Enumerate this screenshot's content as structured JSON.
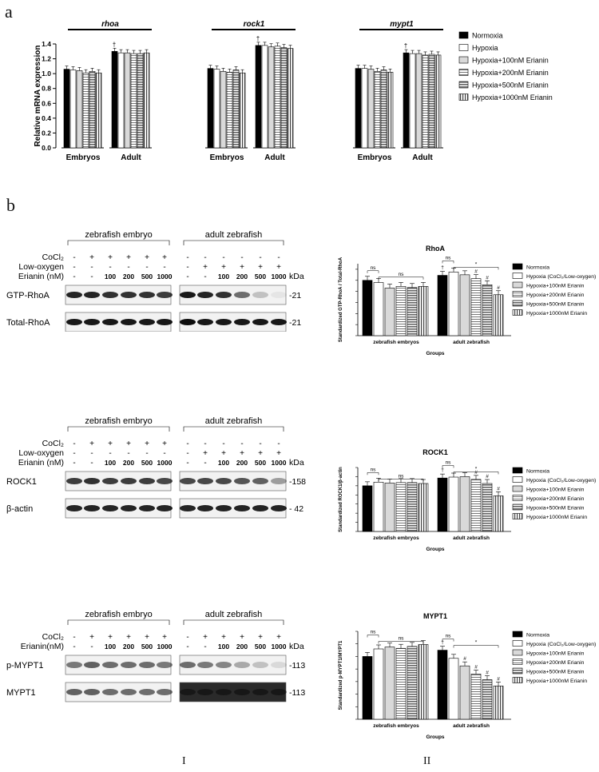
{
  "panel_a_label": "a",
  "panel_b_label": "b",
  "roman_left": "I",
  "roman_right": "II",
  "chart_data": [
    {
      "type": "bar",
      "ylabel": "Relative mRNA expression",
      "ylim": [
        0,
        1.4
      ],
      "yticks": [
        "0.0",
        "0.2",
        "0.4",
        "0.6",
        "0.8",
        "1.0",
        "1.2",
        "1.4"
      ],
      "genes": [
        {
          "title": "rhoa",
          "groups": [
            {
              "label": "Embryos",
              "values": [
                1.06,
                1.05,
                1.04,
                1.01,
                1.03,
                1.01
              ]
            },
            {
              "label": "Adult",
              "values": [
                1.3,
                1.28,
                1.28,
                1.27,
                1.27,
                1.28
              ]
            }
          ],
          "marks": [
            "†"
          ]
        },
        {
          "title": "rock1",
          "groups": [
            {
              "label": "Embryos",
              "values": [
                1.07,
                1.06,
                1.03,
                1.02,
                1.05,
                1.01
              ]
            },
            {
              "label": "Adult",
              "values": [
                1.38,
                1.38,
                1.36,
                1.37,
                1.35,
                1.34
              ]
            }
          ],
          "marks": [
            "†"
          ]
        },
        {
          "title": "mypt1",
          "groups": [
            {
              "label": "Embryos",
              "values": [
                1.07,
                1.07,
                1.06,
                1.03,
                1.05,
                1.02
              ]
            },
            {
              "label": "Adult",
              "values": [
                1.28,
                1.27,
                1.27,
                1.25,
                1.26,
                1.25
              ]
            }
          ],
          "marks": [
            "†"
          ]
        }
      ],
      "legend": [
        "Normoxia",
        "Hypoxia",
        "Hypoxia+100nM Erianin",
        "Hypoxia+200nM Erianin",
        "Hypoxia+500nM Erianin",
        "Hypoxia+1000nM Erianin"
      ]
    },
    {
      "type": "bar",
      "title": "RhoA",
      "ylabel": "Standardized GTP-RhoA / Total-RhoA",
      "xlabel": "Groups",
      "categories": [
        "zebrafish embryos",
        "adult zebrafish"
      ],
      "embryo": [
        1.0,
        0.96,
        0.86,
        0.89,
        0.87,
        0.89
      ],
      "adult": [
        1.09,
        1.15,
        1.1,
        1.03,
        0.92,
        0.74
      ],
      "legend": [
        "Normoxia",
        "Hypoxia (CoCl₂/Low-oxygen)",
        "Hypoxia+100nM Erianin",
        "Hypoxia+200nM Erianin",
        "Hypoxia+500nM Erianin",
        "Hypoxia+1000nM Erianin"
      ],
      "annotations": [
        "ns",
        "ns",
        "†",
        "ns",
        "*",
        "#",
        "#",
        "#"
      ]
    },
    {
      "type": "bar",
      "title": "ROCK1",
      "ylabel": "Standardized ROCK1/β-actin",
      "xlabel": "Groups",
      "categories": [
        "zebrafish embryos",
        "adult zebrafish"
      ],
      "embryo": [
        1.0,
        1.08,
        1.06,
        1.07,
        1.07,
        1.05
      ],
      "adult": [
        1.17,
        1.19,
        1.2,
        1.14,
        1.05,
        0.78
      ],
      "legend": [
        "Normoxia",
        "Hypoxia (CoCl₂/Low-oxygen)",
        "Hypoxia+100nM Erianin",
        "Hypoxia+200nM Erianin",
        "Hypoxia+500nM Erianin",
        "Hypoxia+1000nM Erianin"
      ],
      "annotations": [
        "ns",
        "ns",
        "†",
        "ns",
        "*",
        "#",
        "#",
        "#"
      ]
    },
    {
      "type": "bar",
      "title": "MYPT1",
      "ylabel": "Standardized p-MYPT1/MYPT1",
      "xlabel": "Groups",
      "categories": [
        "zebrafish embryos",
        "adult zebrafish"
      ],
      "embryo": [
        1.0,
        1.12,
        1.15,
        1.13,
        1.16,
        1.19
      ],
      "adult": [
        1.1,
        0.97,
        0.85,
        0.72,
        0.63,
        0.53
      ],
      "legend": [
        "Normoxia",
        "Hypoxia (CoCl₂/Low-oxygen)",
        "Hypoxia+100nM Erianin",
        "Hypoxia+200nM Erianin",
        "Hypoxia+500nM Erianin",
        "Hypoxia+1000nM Erianin"
      ],
      "annotations": [
        "ns",
        "ns",
        "†",
        "ns",
        "*",
        "#",
        "#",
        "#",
        "#"
      ]
    }
  ],
  "blots": [
    {
      "embryo_title": "zebrafish embryo",
      "adult_title": "adult zebrafish",
      "rows": [
        {
          "label": "CoCl₂",
          "values": [
            "-",
            "+",
            "+",
            "+",
            "+",
            "+",
            "-",
            "-",
            "-",
            "-",
            "-",
            "-"
          ]
        },
        {
          "label": "Low-oxygen",
          "values": [
            "-",
            "-",
            "-",
            "-",
            "-",
            "-",
            "-",
            "+",
            "+",
            "+",
            "+",
            "+"
          ]
        },
        {
          "label": "Erianin (nM)",
          "values": [
            "-",
            "-",
            "100",
            "200",
            "500",
            "1000",
            "-",
            "-",
            "100",
            "200",
            "500",
            "1000"
          ]
        }
      ],
      "kda": "kDa",
      "bands": [
        {
          "label": "GTP-RhoA",
          "mw": "-21"
        },
        {
          "label": "Total-RhoA",
          "mw": "-21"
        }
      ]
    },
    {
      "embryo_title": "zebrafish embryo",
      "adult_title": "adult zebrafish",
      "rows": [
        {
          "label": "CoCl₂",
          "values": [
            "-",
            "+",
            "+",
            "+",
            "+",
            "+",
            "-",
            "-",
            "-",
            "-",
            "-",
            "-"
          ]
        },
        {
          "label": "Low-oxygen",
          "values": [
            "-",
            "-",
            "-",
            "-",
            "-",
            "-",
            "-",
            "+",
            "+",
            "+",
            "+",
            "+"
          ]
        },
        {
          "label": "Erianin (nM)",
          "values": [
            "-",
            "-",
            "100",
            "200",
            "500",
            "1000",
            "-",
            "-",
            "100",
            "200",
            "500",
            "1000"
          ]
        }
      ],
      "kda": "kDa",
      "bands": [
        {
          "label": "ROCK1",
          "mw": "-158"
        },
        {
          "label": "β-actin",
          "mw": "- 42"
        }
      ]
    },
    {
      "embryo_title": "zebrafish embryo",
      "adult_title": "adult zebrafish",
      "rows": [
        {
          "label": "CoCl₂",
          "values": [
            "-",
            "+",
            "+",
            "+",
            "+",
            "+",
            "-",
            "+",
            "+",
            "+",
            "+",
            "+"
          ]
        },
        {
          "label": "Erianin(nM)",
          "values": [
            "-",
            "-",
            "100",
            "200",
            "500",
            "1000",
            "-",
            "-",
            "100",
            "200",
            "500",
            "1000"
          ]
        }
      ],
      "kda": "kDa",
      "bands": [
        {
          "label": "p-MYPT1",
          "mw": "-113"
        },
        {
          "label": "MYPT1",
          "mw": "-113"
        }
      ]
    }
  ]
}
